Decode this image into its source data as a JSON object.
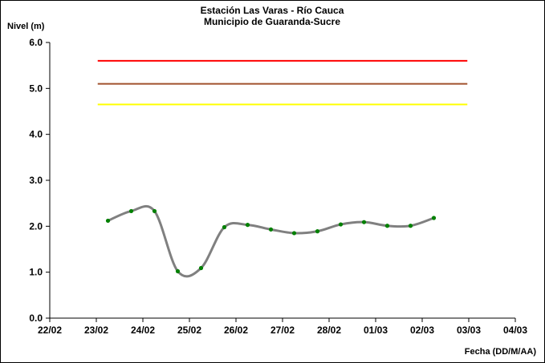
{
  "chart_data": {
    "type": "line",
    "title": [
      "Estación Las Varas - Río Cauca",
      "Municipio de Guaranda-Sucre"
    ],
    "ylabel": "Nivel (m)",
    "xlabel": "Fecha (DD/M/AA)",
    "ylim": [
      0,
      6
    ],
    "y_ticks": [
      "0.0",
      "1.0",
      "2.0",
      "3.0",
      "4.0",
      "5.0",
      "6.0"
    ],
    "x_ticks": [
      "22/02",
      "23/02",
      "24/02",
      "25/02",
      "26/02",
      "27/02",
      "28/02",
      "01/03",
      "02/03",
      "03/03",
      "04/03"
    ],
    "xlim": [
      0,
      10
    ],
    "grid": false,
    "legend": "none",
    "thresholds": [
      {
        "value": 5.6,
        "color": "#ff0000",
        "x_range": [
          1.03,
          8.97
        ]
      },
      {
        "value": 5.1,
        "color": "#a0522d",
        "x_range": [
          1.03,
          8.97
        ]
      },
      {
        "value": 4.65,
        "color": "#ffff00",
        "x_range": [
          1.03,
          8.97
        ]
      }
    ],
    "series": [
      {
        "line_color": "#808080",
        "marker_color": "#008000",
        "x": [
          1.25,
          1.75,
          2.25,
          2.75,
          3.25,
          3.75,
          4.25,
          4.75,
          5.25,
          5.75,
          6.25,
          6.75,
          7.25,
          7.75,
          8.25
        ],
        "y": [
          2.12,
          2.33,
          2.33,
          1.02,
          1.09,
          1.98,
          2.03,
          1.93,
          1.85,
          1.89,
          2.04,
          2.09,
          2.01,
          2.01,
          2.18
        ]
      }
    ]
  }
}
